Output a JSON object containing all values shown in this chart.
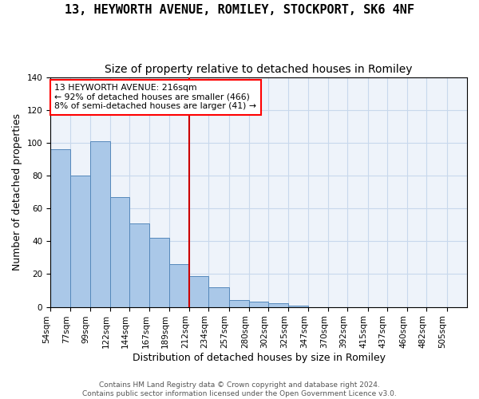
{
  "title": "13, HEYWORTH AVENUE, ROMILEY, STOCKPORT, SK6 4NF",
  "subtitle": "Size of property relative to detached houses in Romiley",
  "xlabel": "Distribution of detached houses by size in Romiley",
  "ylabel": "Number of detached properties",
  "categories": [
    "54sqm",
    "77sqm",
    "99sqm",
    "122sqm",
    "144sqm",
    "167sqm",
    "189sqm",
    "212sqm",
    "234sqm",
    "257sqm",
    "280sqm",
    "302sqm",
    "325sqm",
    "347sqm",
    "370sqm",
    "392sqm",
    "415sqm",
    "437sqm",
    "460sqm",
    "482sqm",
    "505sqm"
  ],
  "bar_lefts": [
    54,
    77,
    99,
    122,
    144,
    167,
    189,
    212,
    234,
    257,
    280,
    302,
    325,
    347,
    370,
    392,
    415,
    437,
    460,
    482,
    505
  ],
  "bar_rights": [
    77,
    99,
    122,
    144,
    167,
    189,
    212,
    234,
    257,
    280,
    302,
    325,
    347,
    370,
    392,
    415,
    437,
    460,
    482,
    505,
    528
  ],
  "bar_heights": [
    96,
    80,
    101,
    67,
    51,
    42,
    26,
    19,
    12,
    4,
    3,
    2,
    1,
    0,
    0,
    0,
    0,
    0,
    0,
    0,
    0
  ],
  "vline_x": 212,
  "vline_color": "#cc0000",
  "bar_facecolor": "#aac8e8",
  "bar_edgecolor": "#5588bb",
  "background_color": "#eef3fa",
  "grid_color": "#c8d8ec",
  "ylim": [
    0,
    140
  ],
  "yticks": [
    0,
    20,
    40,
    60,
    80,
    100,
    120,
    140
  ],
  "annotation_text": "13 HEYWORTH AVENUE: 216sqm\n← 92% of detached houses are smaller (466)\n8% of semi-detached houses are larger (41) →",
  "footer_text": "Contains HM Land Registry data © Crown copyright and database right 2024.\nContains public sector information licensed under the Open Government Licence v3.0.",
  "title_fontsize": 11,
  "subtitle_fontsize": 10,
  "xlabel_fontsize": 9,
  "ylabel_fontsize": 9,
  "tick_fontsize": 7.5,
  "footer_fontsize": 6.5
}
